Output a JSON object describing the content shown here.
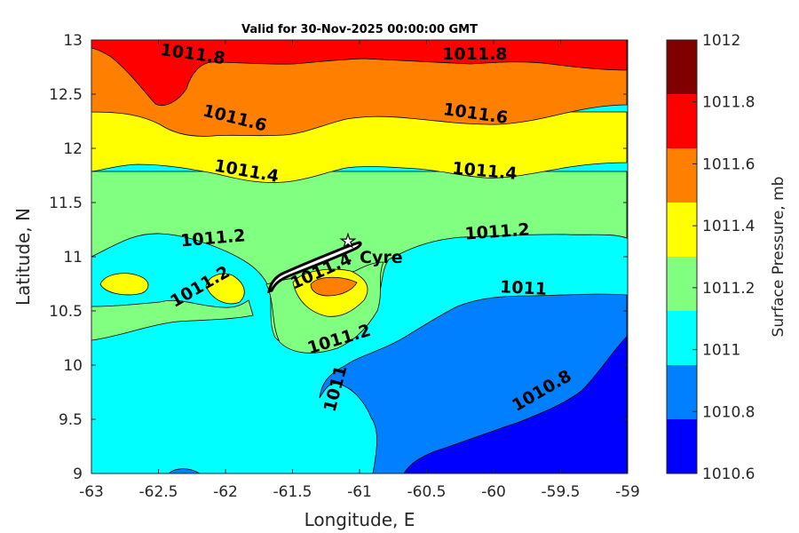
{
  "chart_data": {
    "type": "contourf",
    "title": "Valid for 30-Nov-2025 00:00:00 GMT",
    "xlabel": "Longitude, E",
    "ylabel": "Latitude, N",
    "xlim": [
      -63,
      -59
    ],
    "ylim": [
      9,
      13
    ],
    "xticks": [
      "-63",
      "-62.5",
      "-62",
      "-61.5",
      "-61",
      "-60.5",
      "-60",
      "-59.5",
      "-59"
    ],
    "yticks": [
      "13",
      "12.5",
      "12",
      "11.5",
      "11",
      "10.5",
      "10",
      "9.5",
      "9"
    ],
    "colorbar": {
      "label": "Surface Pressure, mb",
      "ticks": [
        "1012",
        "1011.8",
        "1011.6",
        "1011.4",
        "1011.2",
        "1011",
        "1010.8",
        "1010.6"
      ],
      "levels": [
        1010.6,
        1010.8,
        1011.0,
        1011.2,
        1011.4,
        1011.6,
        1011.8,
        1012.0
      ],
      "colors": [
        "#0000ff",
        "#007fff",
        "#00ffff",
        "#80ff80",
        "#ffff00",
        "#ff8000",
        "#ff0000",
        "#800000"
      ]
    },
    "contour_labels": [
      {
        "text": "1011.8",
        "lon": -62.25,
        "lat": 12.82
      },
      {
        "text": "1011.8",
        "lon": -60.14,
        "lat": 12.82
      },
      {
        "text": "1011.6",
        "lon": -61.94,
        "lat": 12.23
      },
      {
        "text": "1011.6",
        "lon": -60.14,
        "lat": 12.27
      },
      {
        "text": "1011.4",
        "lon": -61.85,
        "lat": 11.74
      },
      {
        "text": "1011.4",
        "lon": -60.07,
        "lat": 11.74
      },
      {
        "text": "1011.2",
        "lon": -62.09,
        "lat": 11.12
      },
      {
        "text": "1011.2",
        "lon": -59.97,
        "lat": 11.18
      },
      {
        "text": "1011.2",
        "lon": -62.17,
        "lat": 10.68
      },
      {
        "text": "1011.4",
        "lon": -61.27,
        "lat": 10.82
      },
      {
        "text": "1011.2",
        "lon": -61.14,
        "lat": 10.19
      },
      {
        "text": "1011",
        "lon": -59.78,
        "lat": 10.66
      },
      {
        "text": "1011",
        "lon": -61.14,
        "lat": 9.77
      },
      {
        "text": "1010.8",
        "lon": -59.62,
        "lat": 9.72
      }
    ],
    "location": {
      "name": "Cyre",
      "lon": -61.05,
      "lat": 11.15
    }
  }
}
